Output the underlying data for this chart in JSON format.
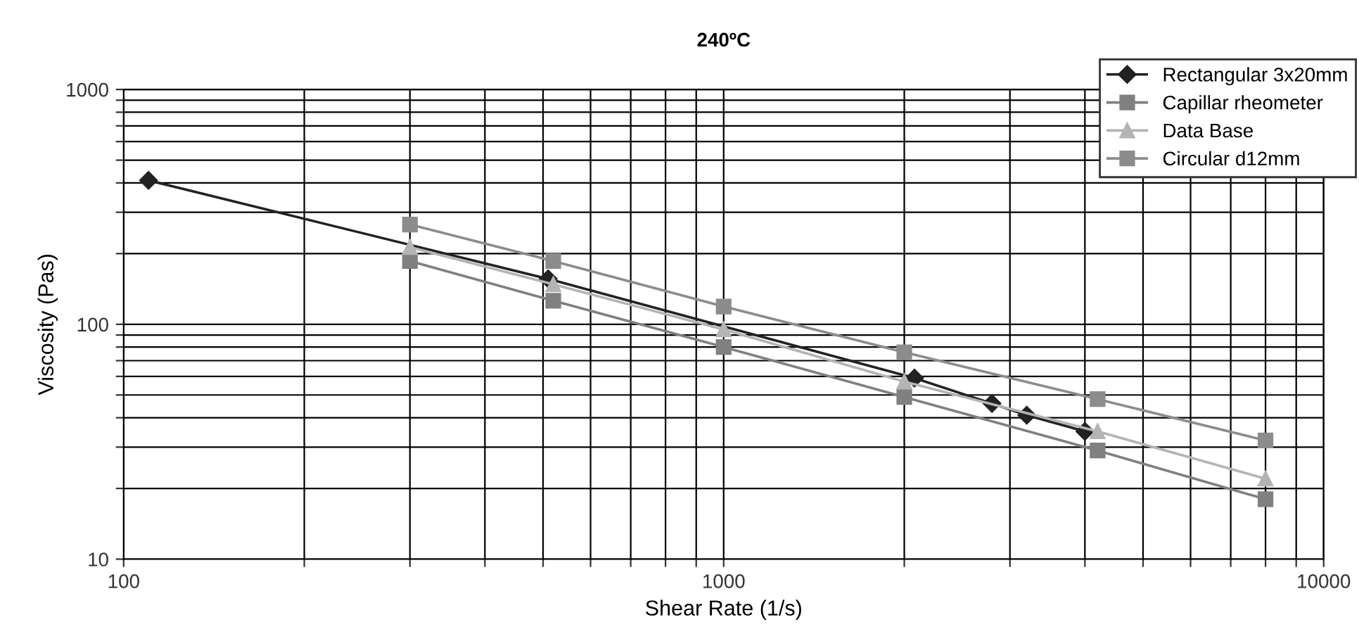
{
  "chart_data": {
    "type": "line",
    "title": "240ºC",
    "xlabel": "Shear Rate (1/s)",
    "ylabel": "Viscosity (Pas)",
    "log": "xy",
    "xlim": [
      100,
      10000
    ],
    "ylim": [
      10,
      1000
    ],
    "xticks": [
      100,
      {
        "value": 200,
        "label": null
      },
      {
        "value": 300,
        "label": null
      },
      {
        "value": 400,
        "label": null
      },
      {
        "value": 500,
        "label": null
      },
      {
        "value": 600,
        "label": null
      },
      {
        "value": 700,
        "label": null
      },
      {
        "value": 800,
        "label": null
      },
      {
        "value": 900,
        "label": null
      },
      1000,
      {
        "value": 2000,
        "label": null
      },
      {
        "value": 3000,
        "label": null
      },
      {
        "value": 4000,
        "label": null
      },
      {
        "value": 5000,
        "label": null
      },
      {
        "value": 6000,
        "label": null
      },
      {
        "value": 7000,
        "label": null
      },
      {
        "value": 8000,
        "label": null
      },
      {
        "value": 9000,
        "label": null
      },
      10000
    ],
    "yticks": [
      10,
      {
        "value": 20,
        "label": null
      },
      {
        "value": 30,
        "label": null
      },
      {
        "value": 40,
        "label": null
      },
      {
        "value": 50,
        "label": null
      },
      {
        "value": 60,
        "label": null
      },
      {
        "value": 70,
        "label": null
      },
      {
        "value": 80,
        "label": null
      },
      {
        "value": 90,
        "label": null
      },
      100,
      {
        "value": 200,
        "label": null
      },
      {
        "value": 300,
        "label": null
      },
      {
        "value": 400,
        "label": null
      },
      {
        "value": 500,
        "label": null
      },
      {
        "value": 600,
        "label": null
      },
      {
        "value": 700,
        "label": null
      },
      {
        "value": 800,
        "label": null
      },
      {
        "value": 900,
        "label": null
      },
      1000
    ],
    "grid": true,
    "legend": "top right",
    "series": [
      {
        "name": "Rectangular 3x20mm",
        "color": "#222222",
        "marker": "diamond",
        "x": [
          110,
          510,
          2080,
          2800,
          3200,
          4000
        ],
        "values": [
          410,
          156,
          59,
          46,
          41,
          35
        ]
      },
      {
        "name": "Capillar rheometer",
        "color": "#808080",
        "marker": "square",
        "x": [
          300,
          520,
          1000,
          2000,
          4200,
          8000
        ],
        "values": [
          186,
          126,
          80,
          49,
          29,
          18
        ]
      },
      {
        "name": "Data Base",
        "color": "#b4b4b4",
        "marker": "triangle",
        "x": [
          300,
          520,
          1000,
          2000,
          4200,
          8000
        ],
        "values": [
          213,
          148,
          95,
          57,
          35,
          22
        ]
      },
      {
        "name": "Circular d12mm",
        "color": "#8c8c8c",
        "marker": "square",
        "x": [
          300,
          520,
          1000,
          2000,
          4200,
          8000
        ],
        "values": [
          266,
          186,
          119,
          76,
          48,
          32
        ]
      }
    ]
  }
}
